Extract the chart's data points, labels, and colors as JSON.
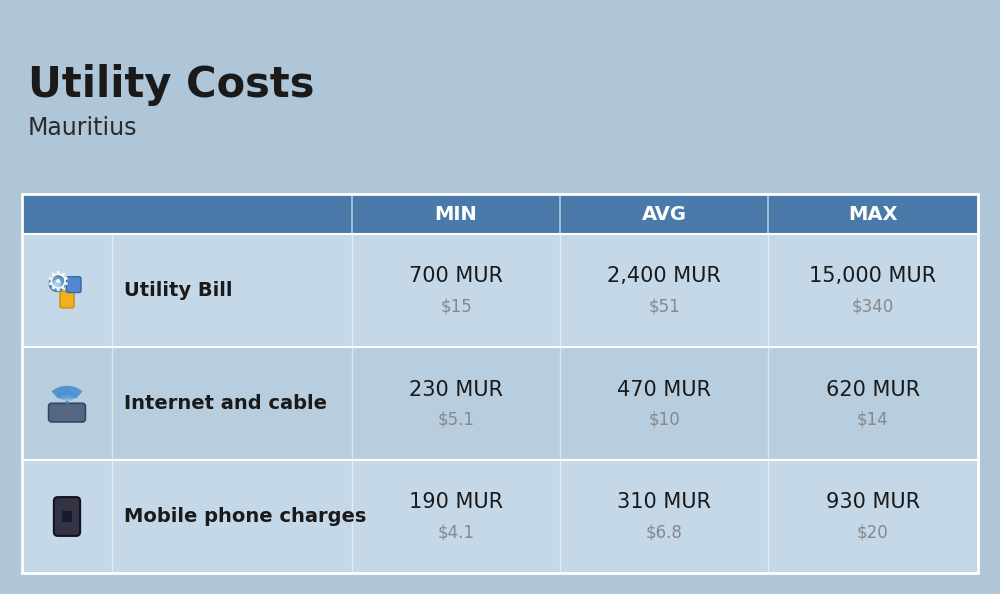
{
  "title": "Utility Costs",
  "subtitle": "Mauritius",
  "background_color": "#aec6d8",
  "header_bg_color": "#4a7aaa",
  "header_text_color": "#ffffff",
  "row_bg_colors_odd": "#c5d8e8",
  "row_bg_colors_even": "#b8cede",
  "col_headers": [
    "MIN",
    "AVG",
    "MAX"
  ],
  "rows": [
    {
      "label": "Utility Bill",
      "values_mur": [
        "700 MUR",
        "2,400 MUR",
        "15,000 MUR"
      ],
      "values_usd": [
        "$15",
        "$51",
        "$340"
      ]
    },
    {
      "label": "Internet and cable",
      "values_mur": [
        "230 MUR",
        "470 MUR",
        "620 MUR"
      ],
      "values_usd": [
        "$5.1",
        "$10",
        "$14"
      ]
    },
    {
      "label": "Mobile phone charges",
      "values_mur": [
        "190 MUR",
        "310 MUR",
        "930 MUR"
      ],
      "values_usd": [
        "$4.1",
        "$6.8",
        "$20"
      ]
    }
  ],
  "flag_colors": [
    "#f0474e",
    "#3c4a9e",
    "#f0d050",
    "#56b832"
  ],
  "title_fontsize": 30,
  "subtitle_fontsize": 17,
  "label_fontsize": 14,
  "value_fontsize": 15,
  "usd_fontsize": 12,
  "header_fontsize": 14
}
